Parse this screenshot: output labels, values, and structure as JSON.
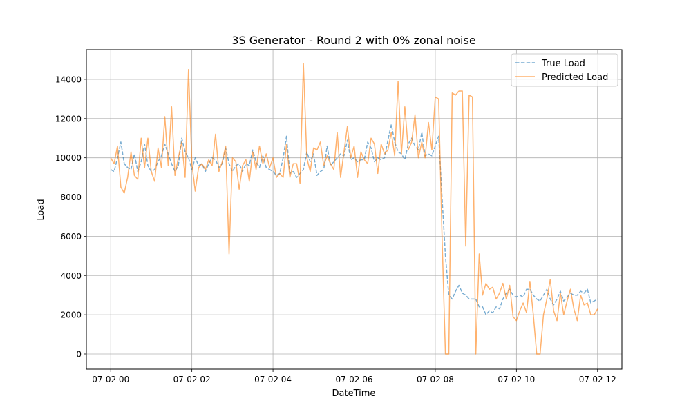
{
  "chart_data": {
    "type": "line",
    "title": "3S Generator - Round 2 with 0% zonal noise",
    "xlabel": "DateTime",
    "ylabel": "Load",
    "x_start_hour": 0,
    "x_interval_minutes": 5,
    "xlim_hours": [
      -0.6,
      12.6
    ],
    "ylim": [
      -774,
      15510
    ],
    "x_ticks": [
      {
        "hour": 0,
        "label": "07-02 00"
      },
      {
        "hour": 2,
        "label": "07-02 02"
      },
      {
        "hour": 4,
        "label": "07-02 04"
      },
      {
        "hour": 6,
        "label": "07-02 06"
      },
      {
        "hour": 8,
        "label": "07-02 08"
      },
      {
        "hour": 10,
        "label": "07-02 10"
      },
      {
        "hour": 12,
        "label": "07-02 12"
      }
    ],
    "y_ticks": [
      {
        "value": 0,
        "label": "0"
      },
      {
        "value": 2000,
        "label": "2000"
      },
      {
        "value": 4000,
        "label": "4000"
      },
      {
        "value": 6000,
        "label": "6000"
      },
      {
        "value": 8000,
        "label": "8000"
      },
      {
        "value": 10000,
        "label": "10000"
      },
      {
        "value": 12000,
        "label": "12000"
      },
      {
        "value": 14000,
        "label": "14000"
      }
    ],
    "grid": true,
    "legend_position": "top-right",
    "series": [
      {
        "name": "True Load",
        "color": "#1f77b4",
        "style": "dashed",
        "values": [
          9400,
          9300,
          10000,
          10800,
          9700,
          9500,
          9400,
          10200,
          9300,
          9800,
          10700,
          9600,
          9300,
          9400,
          9800,
          10100,
          10700,
          10200,
          9700,
          9300,
          9600,
          11000,
          10300,
          10000,
          9400,
          10000,
          9600,
          9700,
          9300,
          9700,
          10000,
          9900,
          9500,
          9700,
          10500,
          9700,
          9300,
          9600,
          9700,
          9300,
          9700,
          9600,
          10400,
          9800,
          9500,
          10100,
          9500,
          9400,
          9300,
          9100,
          9200,
          10000,
          11100,
          9200,
          9300,
          9000,
          9200,
          9400,
          10300,
          9800,
          10200,
          9100,
          9300,
          9400,
          10600,
          9600,
          9800,
          10000,
          10200,
          10100,
          10900,
          9900,
          10000,
          9800,
          9900,
          9900,
          10800,
          10500,
          9800,
          10000,
          9900,
          10000,
          10900,
          11700,
          10800,
          10300,
          10200,
          9900,
          10700,
          11000,
          10600,
          10400,
          11300,
          10100,
          10200,
          10100,
          10600,
          11100,
          8000,
          5000,
          3000,
          2800,
          3200,
          3500,
          3100,
          3000,
          2800,
          2800,
          2800,
          2400,
          2400,
          2000,
          2200,
          2100,
          2400,
          2300,
          2800,
          3100,
          3300,
          3000,
          2900,
          3000,
          2900,
          3300,
          3300,
          3000,
          2800,
          2700,
          3000,
          3300,
          2800,
          2500,
          2800,
          3200,
          2700,
          2900,
          3100,
          3000,
          3000,
          3200,
          3100,
          3300,
          2600,
          2700,
          2800
        ]
      },
      {
        "name": "Predicted Load",
        "color": "#ff7f0e",
        "style": "solid",
        "values": [
          10000,
          9700,
          10600,
          8500,
          8200,
          9000,
          10300,
          9100,
          8900,
          11000,
          9500,
          11000,
          9300,
          8800,
          10500,
          9500,
          12100,
          9600,
          12600,
          9100,
          10000,
          10800,
          9000,
          14500,
          9700,
          8300,
          9500,
          9700,
          9400,
          9900,
          9600,
          11200,
          9300,
          9800,
          10600,
          5100,
          10000,
          9800,
          8400,
          9600,
          9900,
          8800,
          10300,
          9400,
          10600,
          9700,
          10200,
          9500,
          10000,
          9000,
          9200,
          9000,
          10700,
          9000,
          9700,
          9700,
          8700,
          14800,
          10000,
          9300,
          10500,
          10400,
          10800,
          9600,
          10100,
          9700,
          9400,
          11300,
          9000,
          10300,
          11600,
          10000,
          10600,
          9000,
          10300,
          9900,
          9700,
          11000,
          10700,
          9200,
          10700,
          10200,
          10400,
          11300,
          10100,
          13900,
          10200,
          12600,
          10400,
          10800,
          12200,
          10000,
          10800,
          10000,
          11800,
          10400,
          13100,
          13000,
          6000,
          0,
          0,
          13300,
          13200,
          13400,
          13400,
          5500,
          13200,
          13100,
          0,
          5100,
          3000,
          3600,
          3300,
          3400,
          2800,
          3100,
          3600,
          2800,
          3500,
          1900,
          1700,
          2200,
          2600,
          2100,
          3700,
          2000,
          0,
          0,
          2000,
          2800,
          3800,
          2200,
          1700,
          3100,
          2000,
          2700,
          3300,
          2300,
          1700,
          3000,
          2500,
          2600,
          2000,
          2000,
          2300
        ]
      }
    ]
  }
}
